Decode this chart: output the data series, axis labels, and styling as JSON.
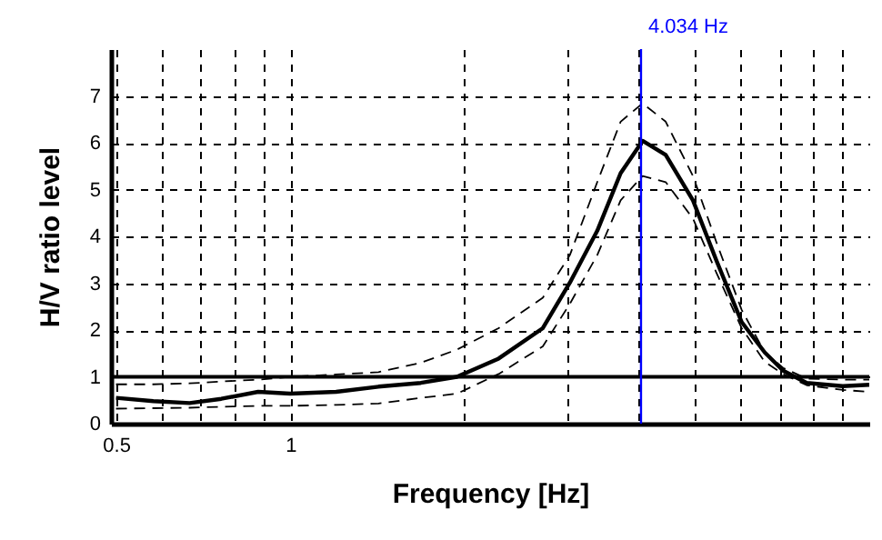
{
  "chart_data": {
    "type": "line",
    "xlabel": "Frequency [Hz]",
    "ylabel": "H/V ratio level",
    "x": [
      0.5,
      0.58,
      0.67,
      0.76,
      0.88,
      1,
      1.2,
      1.42,
      1.68,
      1.94,
      2.29,
      2.73,
      3.04,
      3.39,
      3.72,
      4.06,
      4.45,
      4.96,
      5.45,
      6.02,
      6.6,
      7.1,
      7.8,
      9,
      10
    ],
    "series": [
      {
        "color": "#000000",
        "values": [
          0.55,
          0.48,
          0.44,
          0.53,
          0.68,
          0.64,
          0.68,
          0.79,
          0.87,
          1.0,
          1.39,
          2.04,
          3.01,
          4.12,
          5.35,
          6.04,
          5.74,
          4.77,
          3.47,
          2.17,
          1.52,
          1.13,
          0.87,
          0.8,
          0.83
        ]
      },
      {
        "color": "#000000",
        "line_style": "dashed",
        "values": [
          0.84,
          0.84,
          0.86,
          0.9,
          0.94,
          1.0,
          1.05,
          1.1,
          1.3,
          1.58,
          2.04,
          2.69,
          3.6,
          5.16,
          6.45,
          6.84,
          6.45,
          5.29,
          3.86,
          2.43,
          1.52,
          1.19,
          0.96,
          0.94,
          0.94
        ]
      },
      {
        "color": "#000000",
        "line_style": "dashed",
        "values": [
          0.32,
          0.33,
          0.34,
          0.36,
          0.38,
          0.38,
          0.4,
          0.43,
          0.55,
          0.64,
          1.06,
          1.65,
          2.56,
          3.6,
          4.77,
          5.29,
          5.16,
          4.38,
          3.21,
          2.04,
          1.32,
          1.06,
          0.82,
          0.72,
          0.68
        ]
      }
    ],
    "log": "x",
    "xlim": [
      0.49,
      10
    ],
    "ylim": [
      0,
      8
    ],
    "xticks": [
      0.5,
      {
        "value": 0.6,
        "label": null
      },
      {
        "value": 0.7,
        "label": null
      },
      {
        "value": 0.8,
        "label": null
      },
      {
        "value": 0.9,
        "label": null
      },
      1,
      {
        "value": 2,
        "label": null
      },
      {
        "value": 3,
        "label": null
      },
      {
        "value": 4,
        "label": null
      },
      {
        "value": 5,
        "label": null
      },
      {
        "value": 6,
        "label": null
      },
      {
        "value": 7,
        "label": null
      },
      {
        "value": 8,
        "label": null
      },
      {
        "value": 9,
        "label": null
      }
    ],
    "yticks": [
      0,
      1,
      2,
      3,
      4,
      5,
      6,
      7
    ],
    "grid": true,
    "line_style": "solid",
    "marker": "none",
    "ref_lines": [
      {
        "axis": "y",
        "value": 1,
        "color": "#000000"
      },
      {
        "axis": "x",
        "value": 4.034,
        "label": "4.034 Hz",
        "color": "#0000ff"
      }
    ]
  }
}
